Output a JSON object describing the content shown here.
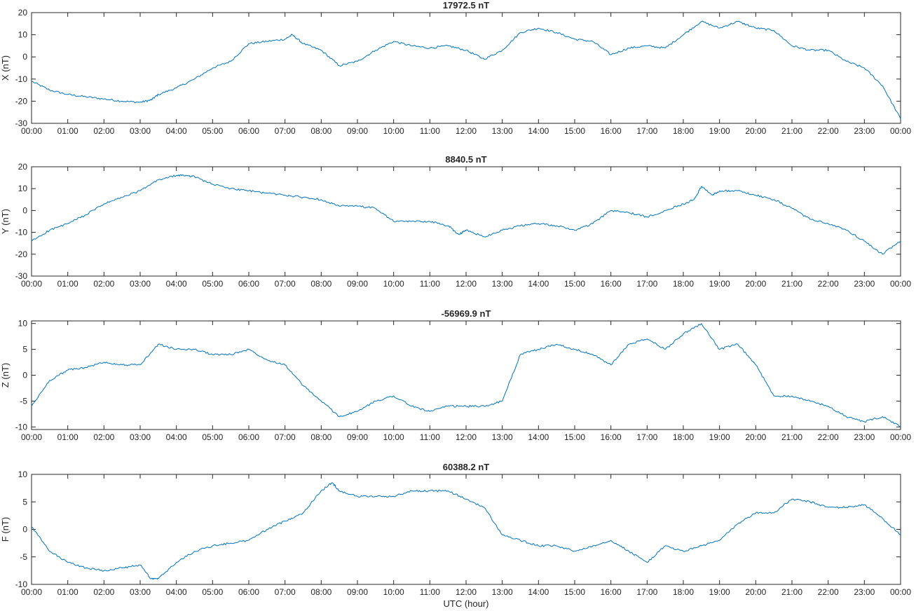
{
  "chart_data": {
    "type": "line",
    "xlabel": "UTC (hour)",
    "x_tick_labels": [
      "00:00",
      "01:00",
      "02:00",
      "03:00",
      "04:00",
      "05:00",
      "06:00",
      "07:00",
      "08:00",
      "09:00",
      "10:00",
      "11:00",
      "12:00",
      "13:00",
      "14:00",
      "15:00",
      "16:00",
      "17:00",
      "18:00",
      "19:00",
      "20:00",
      "21:00",
      "22:00",
      "23:00",
      "00:00"
    ],
    "x_range_hours": [
      0,
      24
    ],
    "grid": false,
    "line_color": "#0072BD",
    "panels": [
      {
        "title": "17972.5 nT",
        "ylabel": "X (nT)",
        "ylim": [
          -30,
          20
        ],
        "yticks": [
          -30,
          -20,
          -10,
          0,
          10,
          20
        ],
        "x": [
          0,
          0.5,
          1,
          1.5,
          2,
          2.5,
          3,
          3.3,
          3.5,
          4,
          4.5,
          5,
          5.5,
          6,
          6.5,
          7,
          7.2,
          7.5,
          8,
          8.5,
          9,
          9.5,
          10,
          10.5,
          11,
          11.5,
          12,
          12.5,
          13,
          13.5,
          14,
          14.5,
          15,
          15.5,
          16,
          16.5,
          17,
          17.5,
          18,
          18.5,
          19,
          19.5,
          20,
          20.5,
          21,
          21.5,
          22,
          22.5,
          23,
          23.5,
          24
        ],
        "values": [
          -11,
          -15,
          -17,
          -18,
          -19,
          -20,
          -20.5,
          -19.5,
          -17,
          -14,
          -10,
          -5,
          -2,
          6,
          7,
          8,
          10,
          6,
          3,
          -4,
          -2,
          3,
          7,
          5,
          4,
          5,
          3,
          -1,
          3,
          11,
          13,
          11,
          8,
          7,
          1,
          4,
          5,
          4,
          10,
          16,
          13,
          16,
          13,
          12,
          5,
          3,
          3,
          -2,
          -5,
          -13,
          -28
        ]
      },
      {
        "title": "8840.5 nT",
        "ylabel": "Y (nT)",
        "ylim": [
          -30,
          20
        ],
        "yticks": [
          -30,
          -20,
          -10,
          0,
          10,
          20
        ],
        "x": [
          0,
          0.5,
          1,
          1.5,
          2,
          2.5,
          3,
          3.5,
          4,
          4.3,
          4.5,
          5,
          5.5,
          6,
          6.5,
          7,
          7.5,
          8,
          8.5,
          9,
          9.5,
          10,
          10.5,
          11,
          11.5,
          11.8,
          12,
          12.5,
          13,
          13.5,
          14,
          14.5,
          15,
          15.5,
          16,
          16.5,
          17,
          17.5,
          18,
          18.3,
          18.5,
          18.8,
          19,
          19.5,
          20,
          20.5,
          21,
          21.5,
          22,
          22.5,
          23,
          23.5,
          24
        ],
        "values": [
          -14,
          -9,
          -6,
          -2,
          3,
          6,
          9,
          14,
          16,
          16,
          15.5,
          12,
          10,
          9,
          8,
          7,
          6,
          5,
          2,
          2,
          1,
          -5,
          -5,
          -5,
          -7,
          -11,
          -9,
          -12,
          -9,
          -7,
          -6,
          -7,
          -9,
          -6,
          0,
          -1,
          -3,
          0,
          3,
          5,
          11,
          7,
          9,
          9,
          7,
          5,
          1,
          -4,
          -6,
          -9,
          -14,
          -20,
          -14
        ]
      },
      {
        "title": "-56969.9 nT",
        "ylabel": "Z (nT)",
        "ylim": [
          -10.5,
          10.5
        ],
        "yticks": [
          -10,
          -5,
          0,
          5,
          10
        ],
        "x": [
          0,
          0.5,
          1,
          1.5,
          2,
          2.5,
          3,
          3.5,
          4,
          4.5,
          5,
          5.5,
          6,
          6.5,
          7,
          7.5,
          8,
          8.5,
          9,
          9.5,
          10,
          10.5,
          11,
          11.5,
          12,
          12.5,
          13,
          13.5,
          14,
          14.5,
          15,
          15.5,
          16,
          16.5,
          17,
          17.5,
          18,
          18.5,
          19,
          19.5,
          20,
          20.5,
          21,
          21.5,
          22,
          22.5,
          23,
          23.5,
          24
        ],
        "values": [
          -6,
          -1,
          1,
          1.5,
          2.5,
          2,
          2,
          6,
          5,
          5,
          4,
          4,
          5,
          3,
          2,
          -2,
          -5,
          -8,
          -7,
          -5,
          -4,
          -6,
          -7,
          -6,
          -6,
          -6,
          -5,
          4,
          5,
          6,
          5,
          4,
          2,
          6,
          7,
          5,
          8,
          10,
          5,
          6,
          2,
          -4,
          -4,
          -5,
          -6,
          -8,
          -9,
          -8,
          -10
        ]
      },
      {
        "title": "60388.2 nT",
        "ylabel": "F (nT)",
        "ylim": [
          -10,
          10
        ],
        "yticks": [
          -10,
          -5,
          0,
          5,
          10
        ],
        "x": [
          0,
          0.5,
          1,
          1.5,
          2,
          2.5,
          3,
          3.3,
          3.5,
          4,
          4.5,
          5,
          5.5,
          6,
          6.5,
          7,
          7.5,
          8,
          8.3,
          8.5,
          9,
          9.5,
          10,
          10.5,
          11,
          11.5,
          12,
          12.5,
          13,
          13.5,
          14,
          14.5,
          15,
          15.5,
          16,
          16.5,
          17,
          17.5,
          18,
          18.5,
          19,
          19.5,
          20,
          20.5,
          21,
          21.5,
          22,
          22.5,
          23,
          23.5,
          24
        ],
        "values": [
          0.5,
          -4,
          -6,
          -7,
          -7.5,
          -7,
          -6.5,
          -9,
          -9,
          -6,
          -4,
          -3,
          -2.5,
          -2,
          0,
          1.5,
          3,
          7,
          8.5,
          7,
          6,
          6,
          6,
          7,
          7,
          7,
          5.5,
          4,
          -1,
          -2,
          -3,
          -3,
          -4,
          -3,
          -2,
          -4,
          -6,
          -3,
          -4,
          -3,
          -2,
          1,
          3,
          3,
          5.5,
          5,
          4,
          4,
          4.5,
          2,
          -1
        ]
      }
    ]
  }
}
